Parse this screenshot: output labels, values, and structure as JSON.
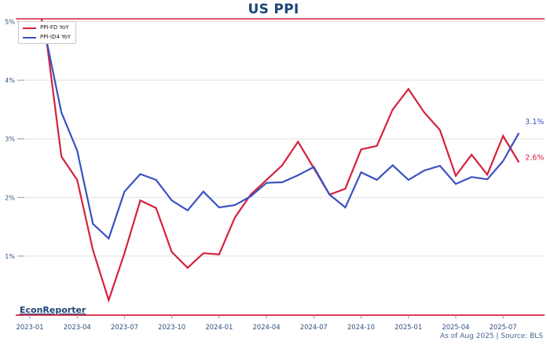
{
  "title": "US PPI",
  "legend": {
    "items": [
      {
        "label": "PPI-FD YoY",
        "color": "#d5213e"
      },
      {
        "label": "PPI-ID4 YoY",
        "color": "#3a51c2"
      }
    ]
  },
  "branding": {
    "logo": "EconReporter",
    "note": "As of Aug 2025 | Source: BLS"
  },
  "colors": {
    "red": "#d5213e",
    "blue": "#3a51c2",
    "navy": "#1c4577",
    "tick_label": "#30507c",
    "grid": "#e0e0e0",
    "tick_mark": "#8b99a8",
    "footer": "#48658f"
  },
  "chart_data": {
    "type": "line",
    "title": "US PPI",
    "x": [
      "2023-01",
      "2023-02",
      "2023-03",
      "2023-04",
      "2023-05",
      "2023-06",
      "2023-07",
      "2023-08",
      "2023-09",
      "2023-10",
      "2023-11",
      "2023-12",
      "2024-01",
      "2024-02",
      "2024-03",
      "2024-04",
      "2024-05",
      "2024-06",
      "2024-07",
      "2024-08",
      "2024-09",
      "2024-10",
      "2024-11",
      "2024-12",
      "2025-01",
      "2025-02",
      "2025-03",
      "2025-04",
      "2025-05",
      "2025-06",
      "2025-07",
      "2025-08"
    ],
    "series": [
      {
        "name": "PPI-FD YoY",
        "color": "#d5213e",
        "end_label": "2.6%",
        "values": [
          5.7,
          4.8,
          2.7,
          2.3,
          1.1,
          0.25,
          1.05,
          1.95,
          1.82,
          1.07,
          0.8,
          1.05,
          1.03,
          1.66,
          2.05,
          2.3,
          2.55,
          2.95,
          2.5,
          2.05,
          2.15,
          2.82,
          2.88,
          3.5,
          3.85,
          3.45,
          3.15,
          2.37,
          2.73,
          2.39,
          3.05,
          2.6
        ]
      },
      {
        "name": "PPI-ID4 YoY",
        "color": "#3a51c2",
        "end_label": "3.1%",
        "values": [
          5.0,
          4.75,
          3.45,
          2.8,
          1.55,
          1.3,
          2.1,
          2.4,
          2.3,
          1.95,
          1.78,
          2.1,
          1.83,
          1.87,
          2.02,
          2.25,
          2.26,
          2.38,
          2.52,
          2.05,
          1.83,
          2.43,
          2.3,
          2.55,
          2.3,
          2.46,
          2.54,
          2.23,
          2.35,
          2.31,
          2.62,
          3.1
        ]
      }
    ],
    "x_tick_labels": [
      "2023-01",
      "2023-04",
      "2023-07",
      "2023-10",
      "2024-01",
      "2024-04",
      "2024-07",
      "2024-10",
      "2025-01",
      "2025-04",
      "2025-07"
    ],
    "y_tick_labels": [
      "1%",
      "2%",
      "3%",
      "4%",
      "5%"
    ],
    "y_tick_values": [
      1,
      2,
      3,
      4,
      5
    ],
    "ylim": [
      0,
      5.05
    ],
    "grid": "horizontal",
    "legend_position": "upper-left",
    "spine_color": "#d5213e"
  }
}
